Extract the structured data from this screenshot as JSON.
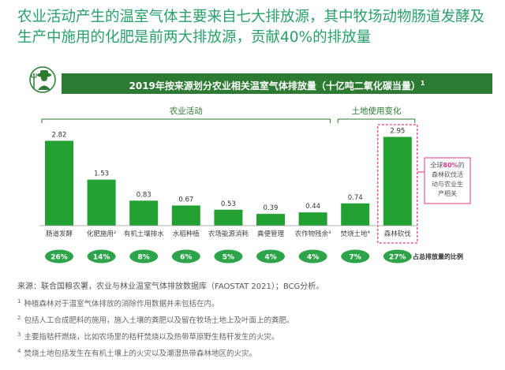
{
  "headline": "农业活动产生的温室气体主要来自七大排放源，其中牧场动物肠道发酵及生产中施用的化肥是前两大排放源，贡献40%的排放量",
  "banner": {
    "text": "2019年按来源划分农业相关温室气体排放量（十亿吨二氧化碳当量）",
    "sup": "1"
  },
  "icon": "farmer-icon",
  "colors": {
    "bar": "#22a032",
    "banner": "#2d7a32",
    "pill": "#2ea44a",
    "accent": "#d63a8c",
    "headline": "#2aa06a"
  },
  "chart_data": {
    "type": "bar",
    "title": "2019年按来源划分农业相关温室气体排放量（十亿吨二氧化碳当量）",
    "groups": [
      {
        "label": "农业活动",
        "categories": [
          "肠道发酵",
          "化肥施用²",
          "有机土壤排水",
          "水稻种植",
          "农场能源消耗",
          "粪便管理",
          "农作物残余³"
        ]
      },
      {
        "label": "土地使用变化",
        "categories": [
          "焚烧土地⁴",
          "森林砍伐"
        ]
      }
    ],
    "categories": [
      "肠道发酵",
      "化肥施用²",
      "有机土壤排水",
      "水稻种植",
      "农场能源消耗",
      "粪便管理",
      "农作物残余³",
      "焚烧土地⁴",
      "森林砍伐"
    ],
    "values": [
      2.82,
      1.53,
      0.83,
      0.67,
      0.53,
      0.39,
      0.44,
      0.74,
      2.95
    ],
    "value_labels": [
      "2.82",
      "1.53",
      "0.83",
      "0.67",
      "0.53",
      "0.39",
      "0.44",
      "0.74",
      "2.95"
    ],
    "shares": [
      "26%",
      "14%",
      "8%",
      "6%",
      "5%",
      "4%",
      "4%",
      "7%",
      "27%"
    ],
    "share_caption": "占总排放量的比例",
    "highlight_index": 8,
    "callout": {
      "before": "全球",
      "highlight": "80%",
      "after": "的森林砍伐活动与农业生产相关"
    },
    "ylim": [
      0,
      3.2
    ]
  },
  "sources": {
    "source_line": "来源：联合国粮农署，农业与林业温室气体排放数据库（FAOSTAT 2021）；BCG分析。",
    "footnotes": [
      {
        "num": "1",
        "text": "种植森林对于温室气体排放的消除作用数据并未包括在内。"
      },
      {
        "num": "2",
        "text": "包括人工合成肥料的施用，施入土壤的粪肥以及留在牧场土地上及叶面上的粪肥。"
      },
      {
        "num": "3",
        "text": "主要指秸秆燃烧，比如农场里的秸秆焚烧以及热带草原野生秸秆发生的火灾。"
      },
      {
        "num": "4",
        "text": "焚烧土地包括发生在有机土壤上的火灾以及潮湿热带森林地区的火灾。"
      }
    ]
  }
}
